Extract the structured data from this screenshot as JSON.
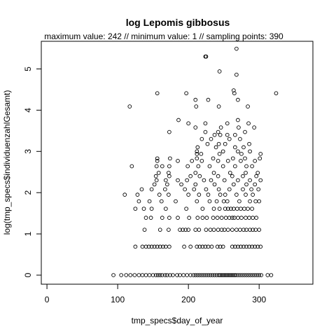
{
  "chart_data": {
    "type": "scatter",
    "title": "log Lepomis gibbosus",
    "subtitle": "maximum value: 242  //  minimum value: 1  // sampling points: 390",
    "xlabel": "tmp_specs$day_of_year",
    "ylabel": "log(tmp_specs$individuenzahlGesamt)",
    "xlim": [
      -8,
      376
    ],
    "ylim": [
      -0.22,
      5.67
    ],
    "xticks": [
      0,
      100,
      200,
      300
    ],
    "yticks": [
      0,
      1,
      2,
      3,
      4,
      5
    ],
    "grid": false,
    "legend": "none",
    "points": [
      [
        94,
        0
      ],
      [
        105,
        0
      ],
      [
        112,
        0
      ],
      [
        118,
        0
      ],
      [
        124,
        0
      ],
      [
        130,
        0
      ],
      [
        135,
        0
      ],
      [
        140,
        0
      ],
      [
        145,
        0
      ],
      [
        150,
        0
      ],
      [
        154,
        0
      ],
      [
        157,
        0
      ],
      [
        160,
        0
      ],
      [
        163,
        0
      ],
      [
        167,
        0
      ],
      [
        170,
        0
      ],
      [
        174,
        0
      ],
      [
        178,
        0
      ],
      [
        184,
        0
      ],
      [
        188,
        0
      ],
      [
        193,
        0
      ],
      [
        198,
        0
      ],
      [
        203,
        0
      ],
      [
        207,
        0
      ],
      [
        210,
        0
      ],
      [
        213,
        0
      ],
      [
        216,
        0
      ],
      [
        219,
        0
      ],
      [
        222,
        0
      ],
      [
        225,
        0
      ],
      [
        228,
        0
      ],
      [
        231,
        0
      ],
      [
        234,
        0
      ],
      [
        237,
        0
      ],
      [
        240,
        0
      ],
      [
        243,
        0
      ],
      [
        245,
        0
      ],
      [
        247,
        0
      ],
      [
        249,
        0
      ],
      [
        251,
        0
      ],
      [
        253,
        0
      ],
      [
        255,
        0
      ],
      [
        257,
        0
      ],
      [
        259,
        0
      ],
      [
        261,
        0
      ],
      [
        263,
        0
      ],
      [
        265,
        0
      ],
      [
        267,
        0
      ],
      [
        270,
        0
      ],
      [
        273,
        0
      ],
      [
        276,
        0
      ],
      [
        279,
        0
      ],
      [
        282,
        0
      ],
      [
        285,
        0
      ],
      [
        288,
        0
      ],
      [
        291,
        0
      ],
      [
        294,
        0
      ],
      [
        297,
        0
      ],
      [
        300,
        0
      ],
      [
        303,
        0
      ],
      [
        312,
        0
      ],
      [
        317,
        0
      ],
      [
        125,
        0.69
      ],
      [
        135,
        0.69
      ],
      [
        140,
        0.69
      ],
      [
        144,
        0.69
      ],
      [
        148,
        0.69
      ],
      [
        152,
        0.69
      ],
      [
        156,
        0.69
      ],
      [
        160,
        0.69
      ],
      [
        164,
        0.69
      ],
      [
        168,
        0.69
      ],
      [
        173,
        0.69
      ],
      [
        194,
        0.69
      ],
      [
        203,
        0.69
      ],
      [
        212,
        0.69
      ],
      [
        216,
        0.69
      ],
      [
        220,
        0.69
      ],
      [
        224,
        0.69
      ],
      [
        228,
        0.69
      ],
      [
        233,
        0.69
      ],
      [
        241,
        0.69
      ],
      [
        245,
        0.69
      ],
      [
        249,
        0.69
      ],
      [
        262,
        0.69
      ],
      [
        266,
        0.69
      ],
      [
        270,
        0.69
      ],
      [
        274,
        0.69
      ],
      [
        278,
        0.69
      ],
      [
        282,
        0.69
      ],
      [
        286,
        0.69
      ],
      [
        290,
        0.69
      ],
      [
        294,
        0.69
      ],
      [
        298,
        0.69
      ],
      [
        302,
        0.69
      ],
      [
        138,
        1.1
      ],
      [
        160,
        1.1
      ],
      [
        172,
        1.1
      ],
      [
        188,
        1.1
      ],
      [
        192,
        1.1
      ],
      [
        196,
        1.1
      ],
      [
        200,
        1.1
      ],
      [
        210,
        1.1
      ],
      [
        215,
        1.1
      ],
      [
        225,
        1.1
      ],
      [
        231,
        1.1
      ],
      [
        236,
        1.1
      ],
      [
        242,
        1.1
      ],
      [
        247,
        1.1
      ],
      [
        251,
        1.1
      ],
      [
        256,
        1.1
      ],
      [
        262,
        1.1
      ],
      [
        268,
        1.1
      ],
      [
        273,
        1.1
      ],
      [
        278,
        1.1
      ],
      [
        282,
        1.1
      ],
      [
        287,
        1.1
      ],
      [
        291,
        1.1
      ],
      [
        295,
        1.1
      ],
      [
        300,
        1.1
      ],
      [
        140,
        1.39
      ],
      [
        147,
        1.39
      ],
      [
        163,
        1.39
      ],
      [
        173,
        1.39
      ],
      [
        185,
        1.39
      ],
      [
        201,
        1.39
      ],
      [
        213,
        1.39
      ],
      [
        220,
        1.39
      ],
      [
        226,
        1.39
      ],
      [
        235,
        1.39
      ],
      [
        241,
        1.39
      ],
      [
        247,
        1.39
      ],
      [
        253,
        1.39
      ],
      [
        258,
        1.39
      ],
      [
        262,
        1.39
      ],
      [
        265,
        1.39
      ],
      [
        270,
        1.39
      ],
      [
        275,
        1.39
      ],
      [
        281,
        1.39
      ],
      [
        286,
        1.39
      ],
      [
        291,
        1.39
      ],
      [
        296,
        1.39
      ],
      [
        125,
        1.61
      ],
      [
        137,
        1.61
      ],
      [
        148,
        1.61
      ],
      [
        168,
        1.61
      ],
      [
        197,
        1.61
      ],
      [
        220,
        1.61
      ],
      [
        236,
        1.61
      ],
      [
        244,
        1.61
      ],
      [
        252,
        1.61
      ],
      [
        256,
        1.61
      ],
      [
        260,
        1.61
      ],
      [
        264,
        1.61
      ],
      [
        269,
        1.61
      ],
      [
        274,
        1.61
      ],
      [
        279,
        1.61
      ],
      [
        284,
        1.61
      ],
      [
        290,
        1.61
      ],
      [
        130,
        1.79
      ],
      [
        145,
        1.79
      ],
      [
        162,
        1.79
      ],
      [
        182,
        1.79
      ],
      [
        212,
        1.79
      ],
      [
        230,
        1.79
      ],
      [
        240,
        1.79
      ],
      [
        250,
        1.79
      ],
      [
        255,
        1.79
      ],
      [
        272,
        1.79
      ],
      [
        287,
        1.79
      ],
      [
        295,
        1.79
      ],
      [
        300,
        1.79
      ],
      [
        110,
        1.95
      ],
      [
        128,
        1.95
      ],
      [
        159,
        1.95
      ],
      [
        172,
        1.95
      ],
      [
        200,
        1.95
      ],
      [
        215,
        1.95
      ],
      [
        228,
        1.95
      ],
      [
        245,
        1.95
      ],
      [
        252,
        1.95
      ],
      [
        268,
        1.95
      ],
      [
        281,
        1.95
      ],
      [
        291,
        1.95
      ],
      [
        134,
        2.08
      ],
      [
        148,
        2.08
      ],
      [
        167,
        2.08
      ],
      [
        195,
        2.08
      ],
      [
        208,
        2.08
      ],
      [
        225,
        2.08
      ],
      [
        243,
        2.08
      ],
      [
        258,
        2.08
      ],
      [
        277,
        2.08
      ],
      [
        289,
        2.08
      ],
      [
        299,
        2.08
      ],
      [
        152,
        2.2
      ],
      [
        170,
        2.2
      ],
      [
        190,
        2.2
      ],
      [
        210,
        2.2
      ],
      [
        237,
        2.2
      ],
      [
        264,
        2.2
      ],
      [
        282,
        2.2
      ],
      [
        294,
        2.2
      ],
      [
        155,
        2.3
      ],
      [
        168,
        2.3
      ],
      [
        185,
        2.3
      ],
      [
        198,
        2.3
      ],
      [
        222,
        2.3
      ],
      [
        232,
        2.3
      ],
      [
        251,
        2.3
      ],
      [
        270,
        2.3
      ],
      [
        287,
        2.3
      ],
      [
        302,
        2.3
      ],
      [
        154,
        2.4
      ],
      [
        173,
        2.4
      ],
      [
        203,
        2.4
      ],
      [
        216,
        2.4
      ],
      [
        242,
        2.4
      ],
      [
        262,
        2.4
      ],
      [
        277,
        2.4
      ],
      [
        296,
        2.4
      ],
      [
        158,
        2.48
      ],
      [
        172,
        2.48
      ],
      [
        210,
        2.48
      ],
      [
        236,
        2.48
      ],
      [
        259,
        2.48
      ],
      [
        281,
        2.48
      ],
      [
        298,
        2.48
      ],
      [
        120,
        2.64
      ],
      [
        155,
        2.64
      ],
      [
        163,
        2.64
      ],
      [
        173,
        2.64
      ],
      [
        199,
        2.64
      ],
      [
        214,
        2.64
      ],
      [
        230,
        2.64
      ],
      [
        249,
        2.64
      ],
      [
        266,
        2.64
      ],
      [
        282,
        2.64
      ],
      [
        290,
        2.64
      ],
      [
        156,
        2.77
      ],
      [
        185,
        2.77
      ],
      [
        205,
        2.77
      ],
      [
        219,
        2.77
      ],
      [
        242,
        2.77
      ],
      [
        256,
        2.77
      ],
      [
        274,
        2.77
      ],
      [
        294,
        2.77
      ],
      [
        156,
        2.83
      ],
      [
        174,
        2.83
      ],
      [
        212,
        2.83
      ],
      [
        235,
        2.83
      ],
      [
        263,
        2.83
      ],
      [
        280,
        2.83
      ],
      [
        301,
        2.83
      ],
      [
        212,
        2.94
      ],
      [
        218,
        2.94
      ],
      [
        244,
        2.94
      ],
      [
        275,
        2.94
      ],
      [
        302,
        2.94
      ],
      [
        212,
        3
      ],
      [
        249,
        3
      ],
      [
        270,
        3
      ],
      [
        287,
        3
      ],
      [
        213,
        3.1
      ],
      [
        239,
        3.1
      ],
      [
        266,
        3.1
      ],
      [
        278,
        3.1
      ],
      [
        227,
        3.18
      ],
      [
        243,
        3.18
      ],
      [
        252,
        3.18
      ],
      [
        286,
        3.18
      ],
      [
        219,
        3.3
      ],
      [
        232,
        3.3
      ],
      [
        258,
        3.3
      ],
      [
        273,
        3.3
      ],
      [
        237,
        3.4
      ],
      [
        245,
        3.4
      ],
      [
        255,
        3.4
      ],
      [
        266,
        3.4
      ],
      [
        173,
        3.47
      ],
      [
        224,
        3.47
      ],
      [
        242,
        3.47
      ],
      [
        280,
        3.47
      ],
      [
        210,
        3.58
      ],
      [
        246,
        3.58
      ],
      [
        271,
        3.58
      ],
      [
        293,
        3.58
      ],
      [
        200,
        3.68
      ],
      [
        224,
        3.68
      ],
      [
        255,
        3.68
      ],
      [
        285,
        3.68
      ],
      [
        186,
        3.76
      ],
      [
        270,
        3.76
      ],
      [
        117,
        4.09
      ],
      [
        211,
        4.09
      ],
      [
        243,
        4.09
      ],
      [
        284,
        4.09
      ],
      [
        210,
        4.25
      ],
      [
        228,
        4.25
      ],
      [
        270,
        4.25
      ],
      [
        156,
        4.41
      ],
      [
        197,
        4.41
      ],
      [
        265,
        4.41
      ],
      [
        324,
        4.41
      ],
      [
        264,
        4.48
      ],
      [
        268,
        4.86
      ],
      [
        244,
        4.94
      ],
      [
        224,
        5.3
      ],
      [
        225,
        5.3
      ],
      [
        268,
        5.49
      ]
    ]
  }
}
